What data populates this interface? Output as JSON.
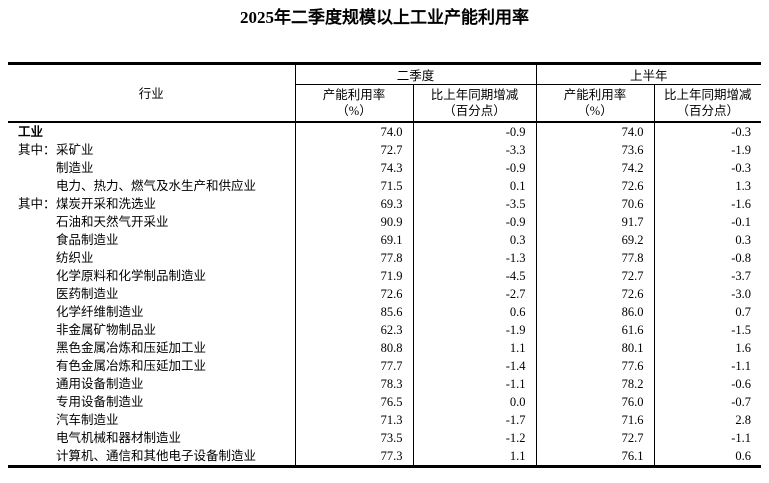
{
  "title": "2025年二季度规模以上工业产能利用率",
  "table": {
    "industry_header": "行业",
    "groups": [
      {
        "label": "二季度",
        "rate_header_line1": "产能利用率",
        "rate_header_line2": "（%）",
        "change_header_line1": "比上年同期增减",
        "change_header_line2": "（百分点）"
      },
      {
        "label": "上半年",
        "rate_header_line1": "产能利用率",
        "rate_header_line2": "（%）",
        "change_header_line1": "比上年同期增减",
        "change_header_line2": "（百分点）"
      }
    ],
    "rows": [
      {
        "prefix": "",
        "indent": false,
        "bold": true,
        "label": "工业",
        "q2_rate": "74.0",
        "q2_change": "-0.9",
        "h1_rate": "74.0",
        "h1_change": "-0.3"
      },
      {
        "prefix": "其中：",
        "indent": true,
        "bold": false,
        "label": "采矿业",
        "q2_rate": "72.7",
        "q2_change": "-3.3",
        "h1_rate": "73.6",
        "h1_change": "-1.9"
      },
      {
        "prefix": "",
        "indent": true,
        "bold": false,
        "label": "制造业",
        "q2_rate": "74.3",
        "q2_change": "-0.9",
        "h1_rate": "74.2",
        "h1_change": "-0.3"
      },
      {
        "prefix": "",
        "indent": true,
        "bold": false,
        "label": "电力、热力、燃气及水生产和供应业",
        "q2_rate": "71.5",
        "q2_change": "0.1",
        "h1_rate": "72.6",
        "h1_change": "1.3"
      },
      {
        "prefix": "其中：",
        "indent": true,
        "bold": false,
        "label": "煤炭开采和洗选业",
        "q2_rate": "69.3",
        "q2_change": "-3.5",
        "h1_rate": "70.6",
        "h1_change": "-1.6"
      },
      {
        "prefix": "",
        "indent": true,
        "bold": false,
        "label": "石油和天然气开采业",
        "q2_rate": "90.9",
        "q2_change": "-0.9",
        "h1_rate": "91.7",
        "h1_change": "-0.1"
      },
      {
        "prefix": "",
        "indent": true,
        "bold": false,
        "label": "食品制造业",
        "q2_rate": "69.1",
        "q2_change": "0.3",
        "h1_rate": "69.2",
        "h1_change": "0.3"
      },
      {
        "prefix": "",
        "indent": true,
        "bold": false,
        "label": "纺织业",
        "q2_rate": "77.8",
        "q2_change": "-1.3",
        "h1_rate": "77.8",
        "h1_change": "-0.8"
      },
      {
        "prefix": "",
        "indent": true,
        "bold": false,
        "label": "化学原料和化学制品制造业",
        "q2_rate": "71.9",
        "q2_change": "-4.5",
        "h1_rate": "72.7",
        "h1_change": "-3.7"
      },
      {
        "prefix": "",
        "indent": true,
        "bold": false,
        "label": "医药制造业",
        "q2_rate": "72.6",
        "q2_change": "-2.7",
        "h1_rate": "72.6",
        "h1_change": "-3.0"
      },
      {
        "prefix": "",
        "indent": true,
        "bold": false,
        "label": "化学纤维制造业",
        "q2_rate": "85.6",
        "q2_change": "0.6",
        "h1_rate": "86.0",
        "h1_change": "0.7"
      },
      {
        "prefix": "",
        "indent": true,
        "bold": false,
        "label": "非金属矿物制品业",
        "q2_rate": "62.3",
        "q2_change": "-1.9",
        "h1_rate": "61.6",
        "h1_change": "-1.5"
      },
      {
        "prefix": "",
        "indent": true,
        "bold": false,
        "label": "黑色金属冶炼和压延加工业",
        "q2_rate": "80.8",
        "q2_change": "1.1",
        "h1_rate": "80.1",
        "h1_change": "1.6"
      },
      {
        "prefix": "",
        "indent": true,
        "bold": false,
        "label": "有色金属冶炼和压延加工业",
        "q2_rate": "77.7",
        "q2_change": "-1.4",
        "h1_rate": "77.6",
        "h1_change": "-1.1"
      },
      {
        "prefix": "",
        "indent": true,
        "bold": false,
        "label": "通用设备制造业",
        "q2_rate": "78.3",
        "q2_change": "-1.1",
        "h1_rate": "78.2",
        "h1_change": "-0.6"
      },
      {
        "prefix": "",
        "indent": true,
        "bold": false,
        "label": "专用设备制造业",
        "q2_rate": "76.5",
        "q2_change": "0.0",
        "h1_rate": "76.0",
        "h1_change": "-0.7"
      },
      {
        "prefix": "",
        "indent": true,
        "bold": false,
        "label": "汽车制造业",
        "q2_rate": "71.3",
        "q2_change": "-1.7",
        "h1_rate": "71.6",
        "h1_change": "2.8"
      },
      {
        "prefix": "",
        "indent": true,
        "bold": false,
        "label": "电气机械和器材制造业",
        "q2_rate": "73.5",
        "q2_change": "-1.2",
        "h1_rate": "72.7",
        "h1_change": "-1.1"
      },
      {
        "prefix": "",
        "indent": true,
        "bold": false,
        "label": "计算机、通信和其他电子设备制造业",
        "q2_rate": "77.3",
        "q2_change": "1.1",
        "h1_rate": "76.1",
        "h1_change": "0.6"
      }
    ]
  }
}
